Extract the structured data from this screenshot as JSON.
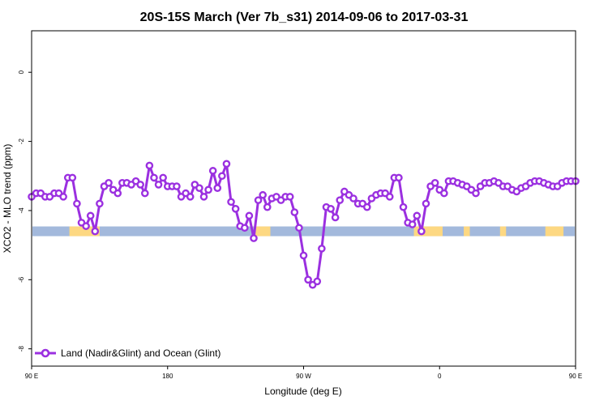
{
  "chart_data": {
    "type": "line",
    "title": "20S-15S March (Ver 7b_s31)   2014-09-06 to 2017-03-31",
    "xlabel": "Longitude (deg E)",
    "ylabel": "XCO2 - MLO trend (ppm)",
    "xlim": [
      90,
      450
    ],
    "ylim": [
      -8.5,
      1.2
    ],
    "x_ticks": [
      {
        "value": 90,
        "label": "90 E"
      },
      {
        "value": 180,
        "label": "180"
      },
      {
        "value": 270,
        "label": "90 W"
      },
      {
        "value": 360,
        "label": "0"
      },
      {
        "value": 450,
        "label": "90 E"
      },
      {
        "value": 540,
        "label": "180"
      }
    ],
    "y_ticks": [
      {
        "value": 0,
        "label": "0"
      },
      {
        "value": -2,
        "label": "-2"
      },
      {
        "value": -4,
        "label": "-4"
      },
      {
        "value": -6,
        "label": "-6"
      },
      {
        "value": -8,
        "label": "-8"
      }
    ],
    "grid": false,
    "legend_position": "bottom-left",
    "series": [
      {
        "name": "Land (Nadir&Glint) and Ocean (Glint)",
        "color": "#9b30e0",
        "x": [
          90,
          93,
          96,
          99,
          102,
          105,
          108,
          111,
          114,
          117,
          120,
          123,
          126,
          129,
          132,
          135,
          138,
          141,
          144,
          147,
          150,
          153,
          156,
          159,
          162,
          165,
          168,
          171,
          174,
          177,
          180,
          183,
          186,
          189,
          192,
          195,
          198,
          201,
          204,
          207,
          210,
          213,
          216,
          219,
          222,
          225,
          228,
          231,
          234,
          237,
          240,
          243,
          246,
          249,
          252,
          255,
          258,
          261,
          264,
          267,
          270,
          273,
          276,
          279,
          282,
          285,
          288,
          291,
          294,
          297,
          300,
          303,
          306,
          309,
          312,
          315,
          318,
          321,
          324,
          327,
          330,
          333,
          336,
          339,
          342,
          345,
          348,
          351,
          354,
          357,
          360,
          363,
          366,
          369,
          372,
          375,
          378,
          381,
          384,
          387,
          390,
          393,
          396,
          399,
          402,
          405,
          408,
          411,
          414,
          417,
          420,
          423,
          426,
          429,
          432,
          435,
          438,
          441,
          444,
          447,
          450
        ],
        "y": [
          -3.6,
          -3.5,
          -3.5,
          -3.6,
          -3.6,
          -3.5,
          -3.5,
          -3.6,
          -3.05,
          -3.05,
          -3.8,
          -4.35,
          -4.45,
          -4.15,
          -4.6,
          -3.8,
          -3.3,
          -3.2,
          -3.4,
          -3.5,
          -3.2,
          -3.2,
          -3.25,
          -3.15,
          -3.25,
          -3.5,
          -2.7,
          -3.05,
          -3.25,
          -3.05,
          -3.3,
          -3.3,
          -3.3,
          -3.6,
          -3.5,
          -3.6,
          -3.25,
          -3.35,
          -3.6,
          -3.4,
          -2.85,
          -3.35,
          -3.0,
          -2.65,
          -3.75,
          -3.95,
          -4.45,
          -4.5,
          -4.15,
          -4.8,
          -3.7,
          -3.55,
          -3.9,
          -3.65,
          -3.6,
          -3.7,
          -3.6,
          -3.6,
          -4.05,
          -4.5,
          -5.3,
          -6.0,
          -6.15,
          -6.05,
          -5.1,
          -3.9,
          -3.95,
          -4.2,
          -3.7,
          -3.45,
          -3.55,
          -3.65,
          -3.8,
          -3.8,
          -3.9,
          -3.65,
          -3.55,
          -3.5,
          -3.5,
          -3.6,
          -3.05,
          -3.05,
          -3.9,
          -4.35,
          -4.4,
          -4.15,
          -4.6,
          -3.8,
          -3.3,
          -3.2,
          -3.4,
          -3.5,
          -3.15,
          -3.15,
          -3.2,
          -3.25,
          -3.3,
          -3.4,
          -3.5,
          -3.3,
          -3.2,
          -3.2,
          -3.15,
          -3.2,
          -3.3,
          -3.3,
          -3.4,
          -3.45,
          -3.35,
          -3.3,
          -3.2,
          -3.15,
          -3.15,
          -3.2,
          -3.25,
          -3.3,
          -3.3,
          -3.2,
          -3.15,
          -3.15,
          -3.15
        ]
      }
    ],
    "surface_band": {
      "y_center": -4.6,
      "ocean_color": "#a3b9dc",
      "land_color": "#fdd882",
      "land_segments": [
        [
          115,
          135
        ],
        [
          237,
          248
        ],
        [
          343,
          362
        ],
        [
          376,
          380
        ],
        [
          400,
          404
        ],
        [
          430,
          442
        ]
      ]
    }
  }
}
